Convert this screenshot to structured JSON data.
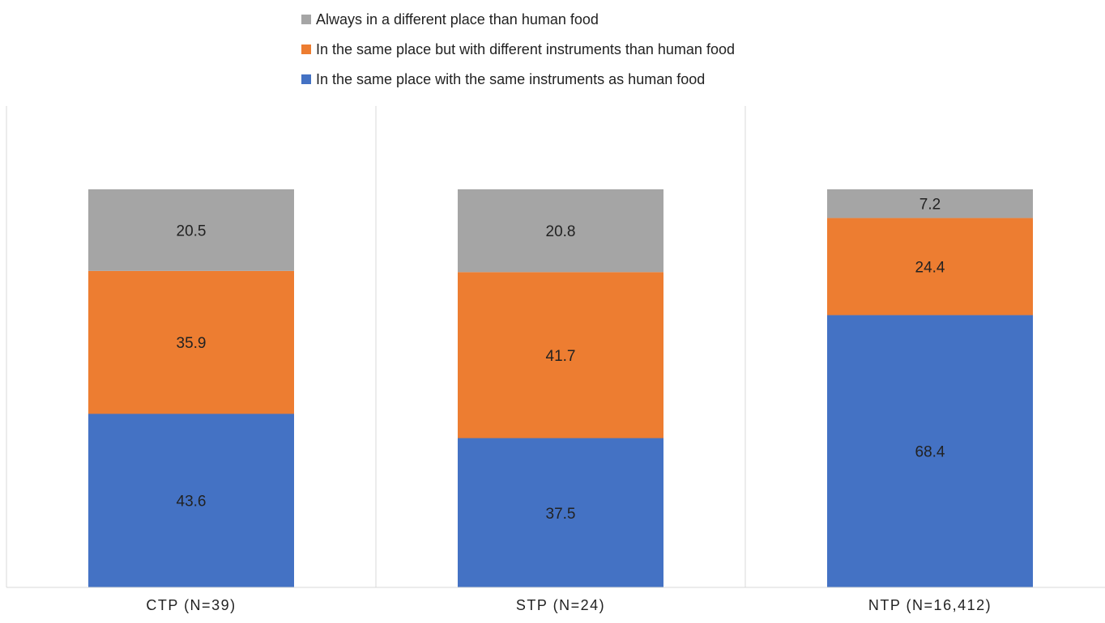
{
  "chart_data": {
    "type": "bar",
    "stacked": true,
    "categories": [
      "CTP (N=39)",
      "STP (N=24)",
      "NTP (N=16,412)"
    ],
    "series": [
      {
        "name": "In the same place with the same instruments as human food",
        "color": "#4472C4",
        "values": [
          43.6,
          37.5,
          68.4
        ]
      },
      {
        "name": "In the same place but with different instruments than human food",
        "color": "#ED7D31",
        "values": [
          35.9,
          41.7,
          24.4
        ]
      },
      {
        "name": "Always in a different place than human food",
        "color": "#A5A5A5",
        "values": [
          20.5,
          20.8,
          7.2
        ]
      }
    ],
    "legend_order": [
      2,
      1,
      0
    ],
    "legend_position": "top",
    "ylim": [
      0,
      125
    ],
    "title": "",
    "xlabel": "",
    "ylabel": "",
    "data_labels": true,
    "category_separators": true,
    "yaxis_visible": false
  }
}
